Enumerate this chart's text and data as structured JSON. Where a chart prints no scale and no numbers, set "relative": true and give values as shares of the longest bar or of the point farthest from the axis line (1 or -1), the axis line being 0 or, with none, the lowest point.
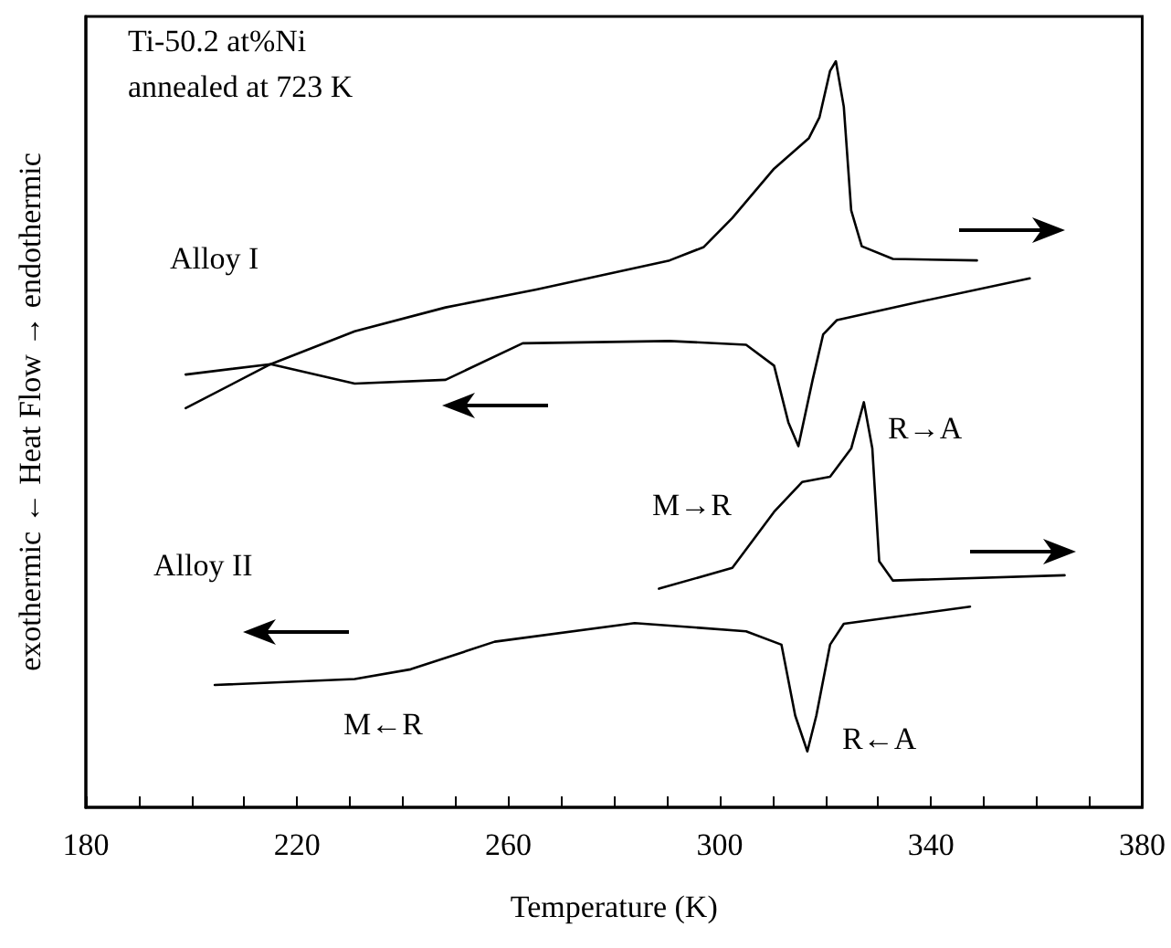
{
  "chart_data": {
    "type": "line",
    "relative": true,
    "xlabel": "Temperature (K)",
    "ylabel": "exothermic ← Heat Flow → endothermic",
    "xlim": [
      180,
      380
    ],
    "xticks": [
      180,
      {
        "value": 190,
        "label": null
      },
      {
        "value": 200,
        "label": null
      },
      {
        "value": 210,
        "label": null
      },
      220,
      {
        "value": 230,
        "label": null
      },
      {
        "value": 240,
        "label": null
      },
      {
        "value": 250,
        "label": null
      },
      260,
      {
        "value": 270,
        "label": null
      },
      {
        "value": 280,
        "label": null
      },
      {
        "value": 290,
        "label": null
      },
      300,
      {
        "value": 310,
        "label": null
      },
      {
        "value": 320,
        "label": null
      },
      {
        "value": 330,
        "label": null
      },
      340,
      {
        "value": 350,
        "label": null
      },
      {
        "value": 360,
        "label": null
      },
      {
        "value": 370,
        "label": null
      },
      380
    ],
    "grid": false,
    "marker": "none",
    "line_style": "solid",
    "series": [
      {
        "color": "#000000",
        "x": [
          198.9,
          215,
          230.9,
          248.1,
          265.3,
          290.5,
          297,
          302.4,
          310.3,
          316.9,
          318.9,
          320.9,
          322,
          323.5,
          324.9,
          326.9,
          332.8,
          348.7
        ],
        "values": [
          0.535,
          0.594,
          0.638,
          0.67,
          0.694,
          0.733,
          0.751,
          0.79,
          0.856,
          0.897,
          0.925,
          0.987,
          1.0,
          0.939,
          0.8,
          0.752,
          0.735,
          0.733
        ]
      },
      {
        "color": "#000000",
        "x": [
          358.7,
          336.8,
          322.2,
          319.6,
          317.6,
          314.9,
          313,
          310.3,
          305,
          290.5,
          262.7,
          248.1,
          230.9,
          215,
          198.9
        ],
        "values": [
          0.709,
          0.676,
          0.653,
          0.634,
          0.573,
          0.484,
          0.516,
          0.592,
          0.62,
          0.625,
          0.622,
          0.573,
          0.568,
          0.594,
          0.58
        ]
      },
      {
        "color": "#000000",
        "x": [
          288.5,
          302.4,
          310.3,
          315.6,
          320.9,
          324.9,
          327.3,
          328.9,
          330.2,
          332.8,
          365.3
        ],
        "values": [
          0.293,
          0.321,
          0.396,
          0.436,
          0.443,
          0.481,
          0.543,
          0.481,
          0.33,
          0.304,
          0.311
        ]
      },
      {
        "color": "#000000",
        "x": [
          347.4,
          323.5,
          320.9,
          318.3,
          316.6,
          314.3,
          311.7,
          305,
          283.9,
          257.4,
          241.5,
          230.9,
          204.4
        ],
        "values": [
          0.269,
          0.246,
          0.218,
          0.123,
          0.075,
          0.123,
          0.218,
          0.236,
          0.247,
          0.222,
          0.185,
          0.172,
          0.164
        ]
      }
    ],
    "annotations": [
      "Ti-50.2 at%Ni",
      "annealed at 723 K",
      "Alloy I",
      "Alloy II",
      "R→A",
      "M→R",
      "M←R",
      "R←A"
    ]
  }
}
